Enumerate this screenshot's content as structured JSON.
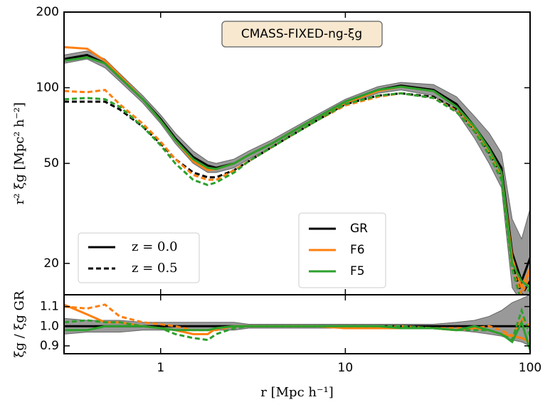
{
  "chart_data": [
    {
      "type": "line",
      "title": "CMASS-FIXED-ng-ξg",
      "ylabel": "r² ξg  [Mpc² h⁻²]",
      "xlog": true,
      "ylog": true,
      "xlim": [
        0.3,
        100
      ],
      "ylim": [
        15,
        200
      ],
      "xticks": [
        1,
        10,
        100
      ],
      "yticks": [
        20,
        50,
        100,
        200
      ],
      "x": [
        0.3,
        0.4,
        0.5,
        0.6,
        0.8,
        1,
        1.2,
        1.5,
        1.8,
        2,
        2.5,
        3,
        4,
        5,
        7,
        10,
        15,
        20,
        30,
        40,
        50,
        60,
        70,
        80,
        90,
        100
      ],
      "styles": [
        {
          "name": "z = 0.0",
          "dash": "none"
        },
        {
          "name": "z = 0.5",
          "dash": "7,4"
        }
      ],
      "band": {
        "color": "#999999",
        "lower": [
          125,
          130,
          120,
          106,
          87,
          72,
          60,
          50,
          46,
          46,
          48,
          52,
          58,
          64,
          74,
          86,
          95,
          98,
          93,
          80,
          63,
          50,
          40,
          16,
          14,
          15
        ],
        "upper": [
          135,
          140,
          130,
          114,
          93,
          78,
          66,
          56,
          51,
          50,
          52,
          56,
          62,
          68,
          78,
          90,
          101,
          105,
          103,
          92,
          77,
          66,
          55,
          30,
          25,
          33
        ]
      },
      "models": [
        {
          "name": "GR",
          "color": "#000000",
          "curves": [
            [
              130,
              135,
              125,
              110,
              90,
              75,
              63,
              53,
              49,
              48,
              50,
              54,
              60,
              66,
              76,
              88,
              98,
              102,
              98,
              86,
              70,
              58,
              48,
              22,
              17,
              21
            ],
            [
              88,
              88,
              88,
              82,
              70,
              60,
              52,
              46,
              44,
              44,
              47,
              51,
              58,
              64,
              74,
              86,
              93,
              95,
              92,
              82,
              68,
              55,
              45,
              20,
              15,
              17
            ]
          ]
        },
        {
          "name": "F6",
          "color": "#ff7f0e",
          "curves": [
            [
              145,
              143,
              128,
              112,
              90,
              74,
              62,
              51,
              47,
              47.5,
              50,
              54,
              60,
              66,
              76,
              87,
              97,
              101,
              97,
              84,
              69,
              57,
              46,
              21,
              16,
              19
            ],
            [
              97,
              96,
              98,
              86,
              72,
              61,
              52,
              45,
              43,
              43,
              47,
              51,
              58,
              64,
              74,
              85,
              92,
              95,
              91,
              81,
              67,
              55,
              44,
              19,
              15,
              18
            ]
          ]
        },
        {
          "name": "F5",
          "color": "#2ca02c",
          "curves": [
            [
              128,
              132,
              125,
              110,
              90,
              74,
              62,
              52,
              48,
              47.5,
              50,
              54,
              60,
              66,
              76,
              88,
              98,
              101,
              97,
              84,
              70,
              57,
              46,
              20,
              17,
              16
            ],
            [
              90,
              91,
              90,
              84,
              70,
              59,
              50,
              43,
              41,
              42,
              46,
              51,
              58,
              64,
              74,
              86,
              93,
              95,
              91,
              80,
              67,
              54,
              43,
              19,
              14,
              16
            ]
          ]
        }
      ]
    },
    {
      "type": "line",
      "xlabel": "r  [Mpc h⁻¹]",
      "ylabel": "ξg / ξg GR",
      "xlog": true,
      "ylog": false,
      "xlim": [
        0.3,
        100
      ],
      "ylim": [
        0.86,
        1.16
      ],
      "xticks": [
        1,
        10,
        100
      ],
      "yticks": [
        0.9,
        {
          "value": 1,
          "label": "1.0"
        },
        1.1
      ],
      "x": [
        0.3,
        0.4,
        0.5,
        0.6,
        0.8,
        1,
        1.2,
        1.5,
        1.8,
        2,
        2.5,
        3,
        4,
        5,
        7,
        10,
        15,
        20,
        30,
        40,
        50,
        60,
        70,
        80,
        90,
        100
      ],
      "band": {
        "color": "#999999",
        "lower": [
          0.96,
          0.97,
          0.97,
          0.97,
          0.98,
          0.98,
          0.98,
          0.98,
          0.98,
          0.98,
          0.98,
          0.99,
          0.99,
          0.99,
          0.99,
          0.99,
          0.99,
          0.99,
          0.99,
          0.98,
          0.97,
          0.96,
          0.95,
          0.93,
          0.92,
          0.9
        ],
        "upper": [
          1.04,
          1.03,
          1.03,
          1.03,
          1.02,
          1.02,
          1.02,
          1.02,
          1.02,
          1.02,
          1.02,
          1.01,
          1.01,
          1.01,
          1.01,
          1.01,
          1.01,
          1.01,
          1.01,
          1.02,
          1.03,
          1.05,
          1.08,
          1.12,
          1.14,
          1.16
        ]
      },
      "styles": [
        {
          "dash": "none"
        },
        {
          "dash": "7,4"
        }
      ],
      "models": [
        {
          "color": "#000000",
          "curves": [
            [
              1,
              1,
              1,
              1,
              1,
              1,
              1,
              1,
              1,
              1,
              1,
              1,
              1,
              1,
              1,
              1,
              1,
              1,
              1,
              1,
              1,
              1,
              1,
              1,
              1,
              1
            ]
          ]
        },
        {
          "color": "#ff7f0e",
          "curves": [
            [
              1.11,
              1.06,
              1.02,
              1.02,
              1.0,
              0.99,
              0.98,
              0.96,
              0.96,
              0.99,
              1.0,
              1.0,
              1.0,
              1.0,
              1.0,
              0.99,
              0.99,
              0.99,
              0.99,
              0.98,
              0.99,
              0.98,
              0.96,
              0.95,
              0.94,
              0.92
            ],
            [
              1.1,
              1.09,
              1.11,
              1.05,
              1.02,
              1.01,
              1.0,
              0.98,
              0.98,
              0.98,
              1.0,
              1.0,
              1.0,
              1.0,
              1.0,
              0.99,
              0.99,
              1.0,
              0.99,
              0.99,
              0.99,
              1.0,
              0.98,
              0.95,
              1.04,
              1.0
            ]
          ]
        },
        {
          "color": "#2ca02c",
          "curves": [
            [
              0.98,
              0.98,
              1.0,
              1.0,
              1.0,
              0.99,
              0.98,
              0.98,
              0.98,
              0.99,
              1.0,
              1.0,
              1.0,
              1.0,
              1.0,
              1.0,
              1.0,
              0.99,
              0.99,
              0.98,
              1.0,
              0.98,
              0.96,
              0.92,
              1.02,
              0.88
            ],
            [
              1.02,
              1.03,
              1.02,
              1.02,
              1.0,
              0.99,
              0.96,
              0.94,
              0.93,
              0.96,
              0.99,
              1.0,
              1.0,
              1.0,
              1.0,
              1.0,
              1.0,
              1.0,
              0.99,
              0.98,
              0.98,
              0.98,
              0.96,
              0.93,
              1.08,
              0.95
            ]
          ]
        }
      ]
    }
  ]
}
